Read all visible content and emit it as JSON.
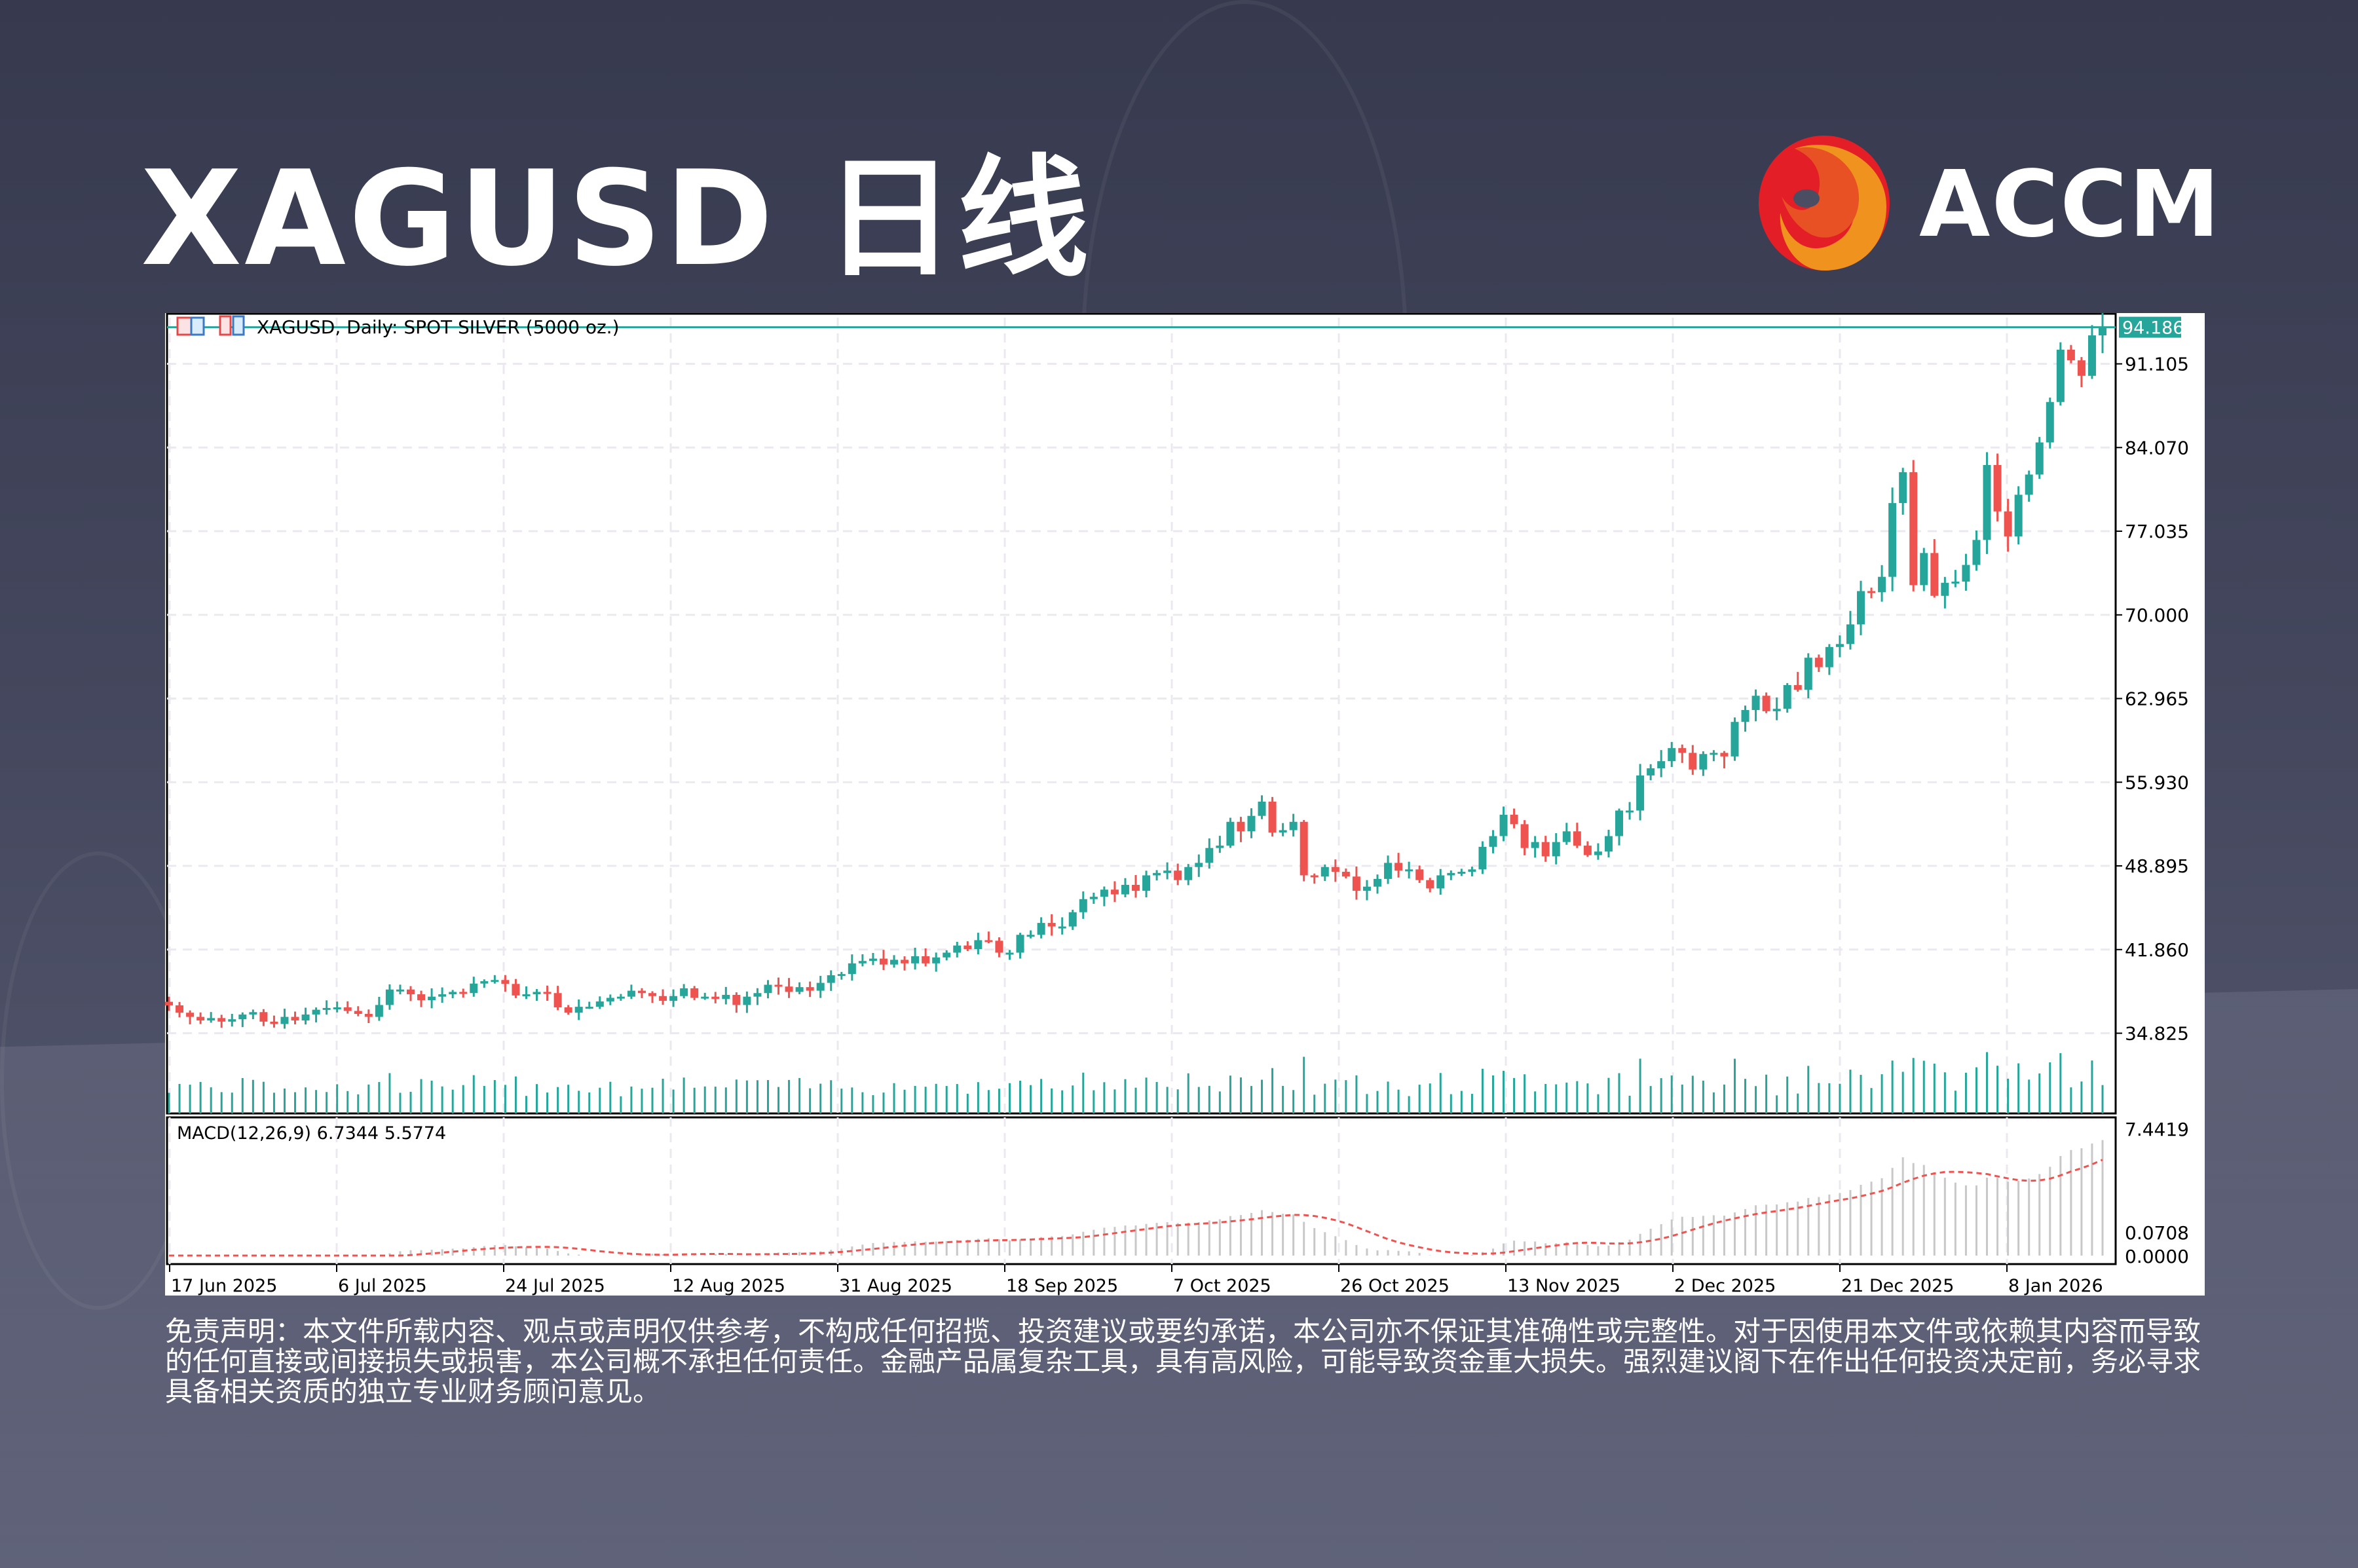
{
  "header": {
    "title": "XAGUSD 日线",
    "brand": "ACCM"
  },
  "chart_data": {
    "type": "candlestick",
    "title": "XAGUSD, Daily:  SPOT SILVER (5000 oz.)",
    "current_price": "94.186",
    "ylim": [
      28.08,
      94.99
    ],
    "grid": true,
    "y_ticks": [
      "91.105",
      "84.070",
      "77.035",
      "70.000",
      "62.965",
      "55.930",
      "48.895",
      "41.860",
      "34.825"
    ],
    "x_ticks": [
      "17 Jun 2025",
      "6 Jul 2025",
      "24 Jul 2025",
      "12 Aug 2025",
      "31 Aug 2025",
      "18 Sep 2025",
      "7 Oct 2025",
      "26 Oct 2025",
      "13 Nov 2025",
      "2 Dec 2025",
      "21 Dec 2025",
      "8 Jan 2026"
    ],
    "close": [
      37.17,
      36.55,
      36.2,
      35.9,
      36.1,
      35.8,
      36.0,
      36.4,
      36.6,
      35.8,
      35.6,
      36.2,
      35.9,
      36.4,
      36.8,
      36.95,
      37.0,
      36.7,
      36.45,
      36.2,
      37.2,
      38.5,
      38.5,
      38.1,
      37.6,
      37.9,
      38.1,
      38.3,
      38.2,
      39.0,
      39.2,
      39.3,
      38.97,
      38.0,
      38.1,
      38.3,
      38.2,
      37.0,
      36.55,
      37.05,
      37.05,
      37.5,
      37.8,
      37.9,
      38.4,
      38.2,
      37.95,
      37.55,
      37.95,
      38.6,
      37.8,
      37.9,
      37.7,
      38.05,
      37.2,
      37.9,
      38.2,
      38.9,
      38.75,
      38.3,
      38.7,
      38.4,
      39.06,
      39.7,
      39.8,
      40.7,
      40.9,
      41.1,
      40.6,
      41.0,
      40.7,
      41.3,
      40.7,
      41.2,
      41.6,
      42.2,
      41.9,
      42.65,
      42.6,
      41.6,
      41.6,
      43.1,
      43.1,
      44.1,
      43.8,
      43.8,
      45.0,
      46.1,
      46.3,
      46.9,
      46.5,
      47.3,
      46.8,
      48.1,
      48.3,
      48.5,
      47.7,
      48.8,
      49.15,
      50.4,
      50.6,
      52.6,
      51.8,
      53.1,
      54.3,
      51.7,
      51.9,
      52.6,
      48.1,
      48.0,
      48.8,
      48.4,
      48.0,
      46.8,
      47.15,
      47.8,
      49.15,
      48.5,
      48.6,
      47.7,
      47.0,
      48.1,
      48.3,
      48.4,
      48.6,
      50.5,
      51.4,
      53.2,
      52.4,
      50.4,
      50.9,
      49.7,
      50.9,
      51.8,
      50.6,
      49.8,
      50.1,
      51.4,
      53.55,
      53.55,
      56.5,
      57.1,
      57.7,
      58.8,
      58.4,
      57.0,
      58.3,
      58.4,
      58.1,
      61.0,
      62.0,
      63.2,
      61.9,
      62.1,
      64.1,
      63.7,
      66.4,
      65.6,
      67.3,
      67.55,
      69.2,
      72.0,
      71.9,
      73.2,
      79.4,
      82.0,
      72.5,
      75.2,
      71.6,
      72.7,
      72.8,
      74.2,
      76.3,
      82.6,
      78.7,
      76.6,
      80.1,
      81.8,
      84.5,
      87.9,
      92.3,
      91.4,
      90.1,
      93.5,
      94.186
    ],
    "macd": {
      "label": "MACD(12,26,9) 6.7344 5.5774",
      "y_ticks": [
        "7.4419",
        "0.0708",
        "0.0000"
      ],
      "ylim": [
        0,
        7.4419
      ]
    },
    "colors": {
      "up": "#26a69a",
      "down": "#ef5350",
      "macd_hist": "#c8c8c8",
      "signal": "#ef5350",
      "grid": "#ece8f0"
    }
  },
  "disclaimer": "免责声明：本文件所载内容、观点或声明仅供参考，不构成任何招揽、投资建议或要约承诺，本公司亦不保证其准确性或完整性。对于因使用本文件或依赖其内容而导致的任何直接或间接损失或损害，本公司概不承担任何责任。金融产品属复杂工具，具有高风险，可能导致资金重大损失。强烈建议阁下在作出任何投资决定前，务必寻求具备相关资质的独立专业财务顾问意见。"
}
